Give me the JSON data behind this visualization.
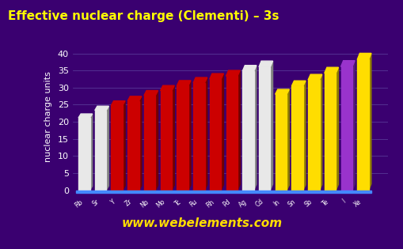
{
  "title": "Effective nuclear charge (Clementi) – 3s",
  "ylabel": "nuclear charge units",
  "watermark": "www.webelements.com",
  "elements": [
    "Rb",
    "Sr",
    "Y",
    "Zr",
    "Nb",
    "Mo",
    "Tc",
    "Ru",
    "Rh",
    "Pd",
    "Ag",
    "Cd",
    "In",
    "Sn",
    "Sb",
    "Te",
    "I",
    "Xe"
  ],
  "values": [
    21.18,
    23.36,
    24.83,
    26.12,
    27.74,
    29.15,
    30.56,
    31.42,
    32.52,
    33.41,
    34.83,
    36.06,
    28.08,
    30.49,
    32.29,
    34.27,
    36.17,
    38.24
  ],
  "colors": [
    "#e8e8e8",
    "#e8e8e8",
    "#cc0000",
    "#cc0000",
    "#cc0000",
    "#cc0000",
    "#cc0000",
    "#cc0000",
    "#cc0000",
    "#cc0000",
    "#e8e8e8",
    "#e8e8e8",
    "#ffdd00",
    "#ffdd00",
    "#ffdd00",
    "#ffdd00",
    "#9933cc",
    "#ffdd00"
  ],
  "bg_color": "#3a0070",
  "axis_bg": "#3a0070",
  "title_color": "#ffff00",
  "ylabel_color": "#ffffff",
  "tick_color": "#ffffff",
  "grid_color": "#6655aa",
  "bar_floor_color": "#4488ff",
  "ylim": [
    0,
    42
  ],
  "yticks": [
    0,
    5,
    10,
    15,
    20,
    25,
    30,
    35,
    40
  ]
}
